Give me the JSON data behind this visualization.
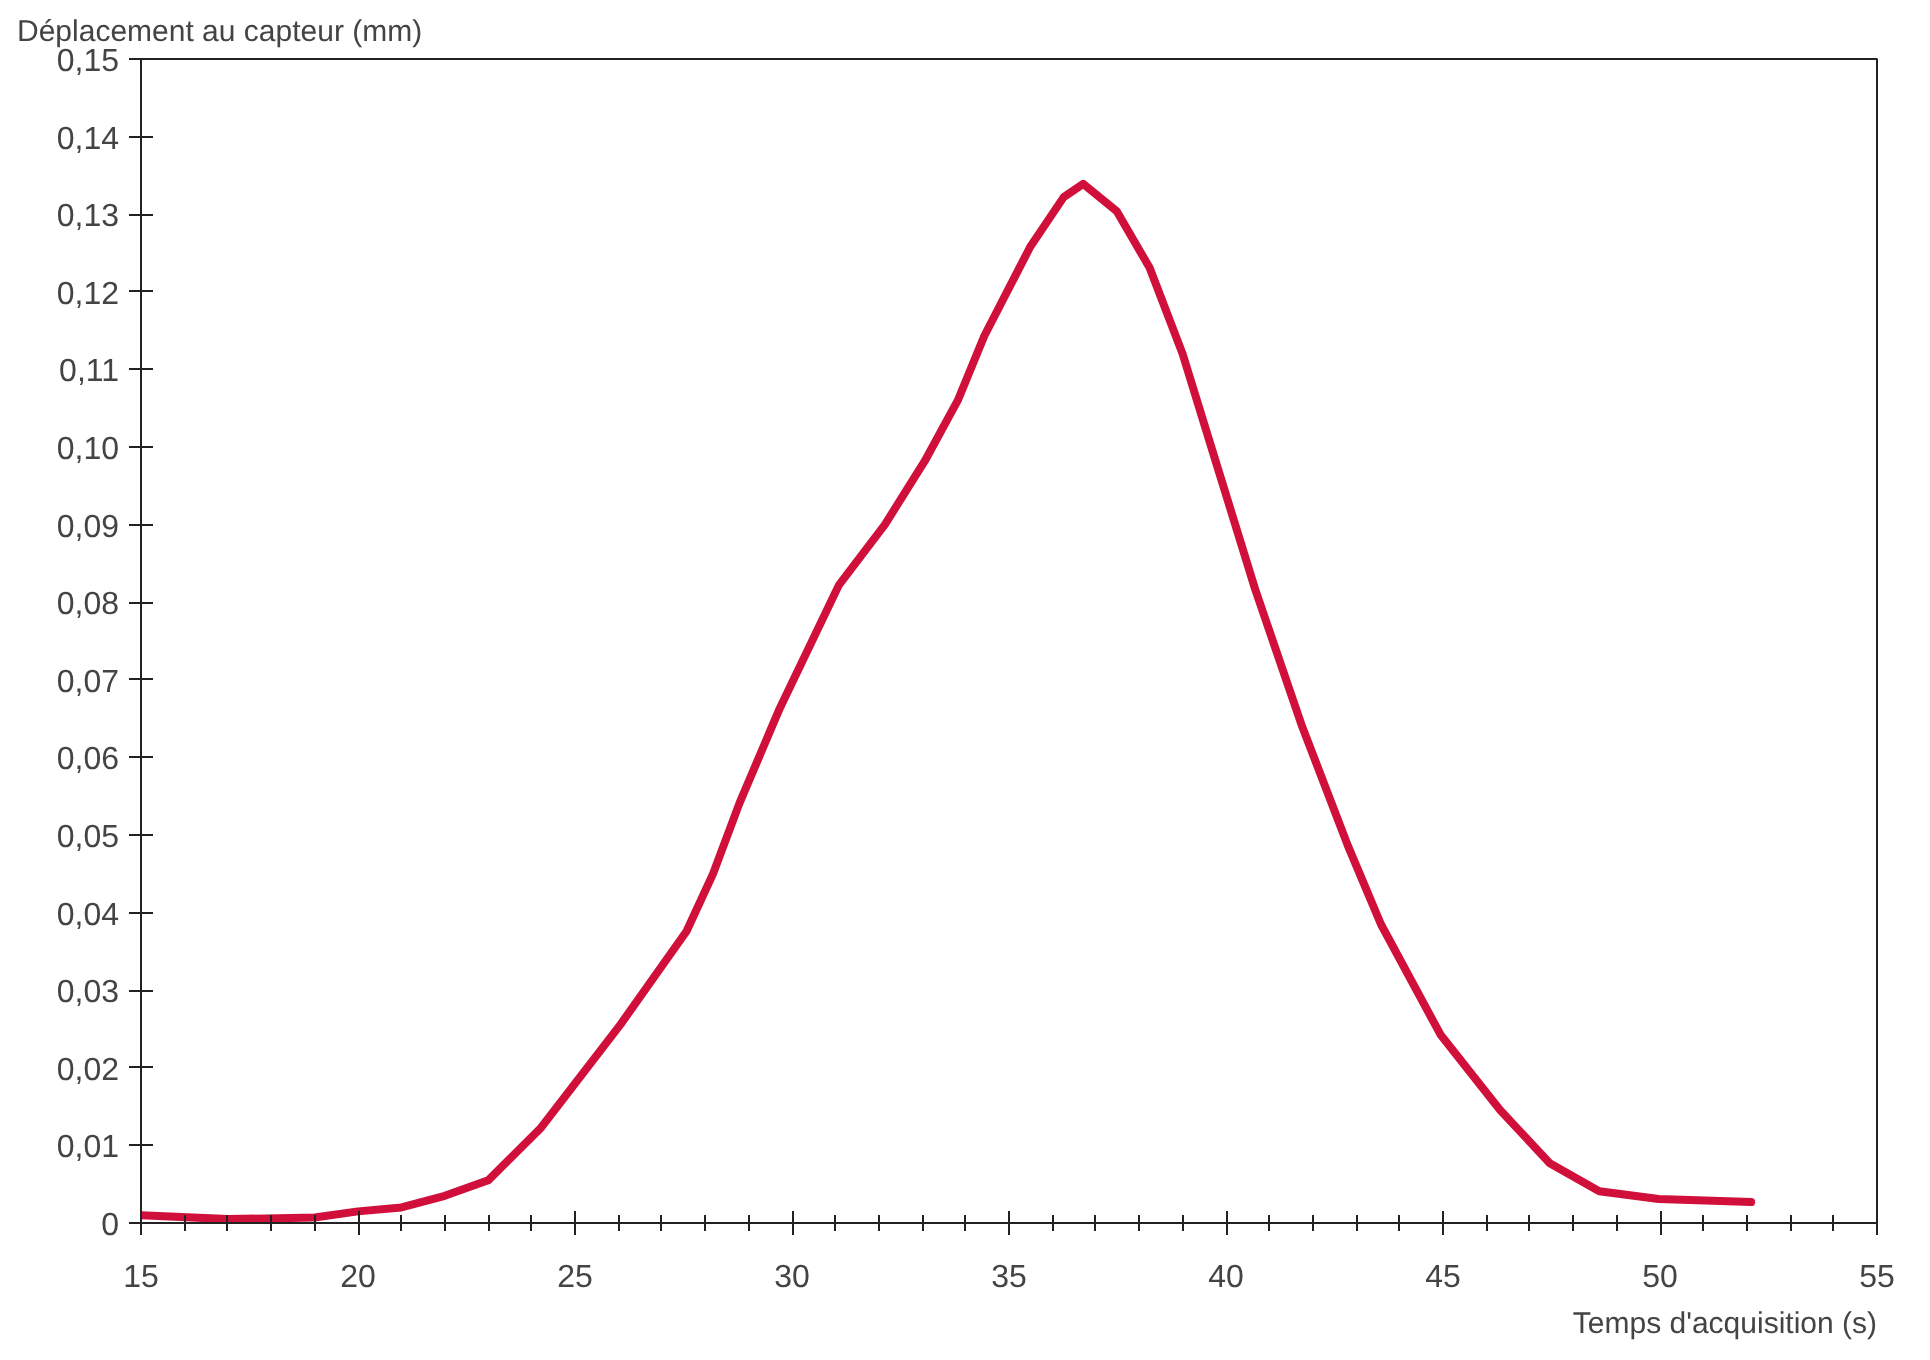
{
  "chart_data": {
    "type": "line",
    "xlabel": "Temps d'acquisition (s)",
    "ylabel": "Déplacement au capteur (mm)",
    "x": [
      15,
      17,
      19,
      20,
      21,
      22,
      23,
      24.22,
      26.05,
      27.57,
      28.18,
      28.79,
      29.7,
      31.08,
      32.14,
      33.06,
      33.82,
      34.43,
      35.49,
      36.26,
      36.71,
      37.48,
      38.24,
      39.0,
      39.76,
      40.67,
      41.74,
      42.81,
      43.57,
      44.94,
      46.31,
      47.46,
      48.6,
      49.97,
      52.1
    ],
    "series": [
      {
        "color": "#d0103a",
        "values": [
          0.001,
          0.0005,
          0.0007,
          0.0015,
          0.002,
          0.0035,
          0.0055,
          0.0123,
          0.0256,
          0.0376,
          0.045,
          0.0541,
          0.0661,
          0.0822,
          0.09,
          0.0982,
          0.106,
          0.1143,
          0.1258,
          0.1322,
          0.1339,
          0.1304,
          0.1231,
          0.112,
          0.0982,
          0.0817,
          0.0642,
          0.0486,
          0.0385,
          0.0243,
          0.0146,
          0.0077,
          0.0041,
          0.0031,
          0.0027
        ]
      }
    ],
    "xlim": [
      15,
      55
    ],
    "xticks": [
      15,
      20,
      25,
      30,
      35,
      40,
      45,
      50,
      55
    ],
    "ylim": [
      0,
      0.15
    ],
    "yticks": [
      0,
      {
        "value": 0.01,
        "label": "0,01"
      },
      {
        "value": 0.02,
        "label": "0,02"
      },
      {
        "value": 0.03,
        "label": "0,03"
      },
      {
        "value": 0.04,
        "label": "0,04"
      },
      {
        "value": 0.05,
        "label": "0,05"
      },
      {
        "value": 0.06,
        "label": "0,06"
      },
      {
        "value": 0.07,
        "label": "0,07"
      },
      {
        "value": 0.08,
        "label": "0,08"
      },
      {
        "value": 0.09,
        "label": "0,09"
      },
      {
        "value": 0.1,
        "label": "0,10"
      },
      {
        "value": 0.11,
        "label": "0,11"
      },
      {
        "value": 0.12,
        "label": "0,12"
      },
      {
        "value": 0.13,
        "label": "0,13"
      },
      {
        "value": 0.14,
        "label": "0,14"
      },
      {
        "value": 0.15,
        "label": "0,15"
      }
    ],
    "grid": false,
    "marker": "none",
    "line_style": "solid"
  }
}
